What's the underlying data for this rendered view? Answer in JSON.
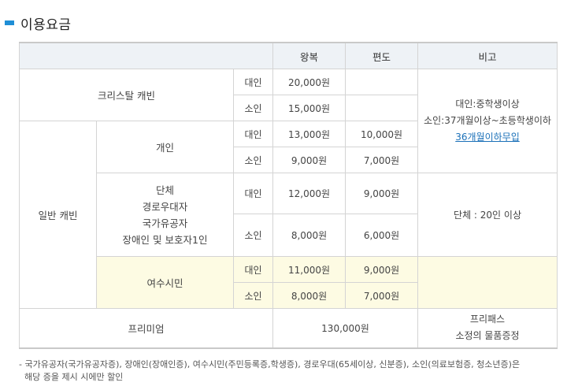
{
  "heading": "이용요금",
  "table": {
    "headers": {
      "blank": "",
      "round_trip": "왕복",
      "one_way": "편도",
      "remarks": "비고"
    },
    "crystal": {
      "label": "크리스탈  캐빈",
      "adult": {
        "type": "대인",
        "round_trip": "20,000원",
        "one_way": ""
      },
      "child": {
        "type": "소인",
        "round_trip": "15,000원",
        "one_way": ""
      }
    },
    "general": {
      "label": "일반  캐빈",
      "individual": {
        "label": "개인",
        "adult": {
          "type": "대인",
          "round_trip": "13,000원",
          "one_way": "10,000원"
        },
        "child": {
          "type": "소인",
          "round_trip": "9,000원",
          "one_way": "7,000원"
        }
      },
      "group": {
        "label_lines": [
          "단체",
          "경로우대자",
          "국가유공자",
          "장애인 및 보호자1인"
        ],
        "adult": {
          "type": "대인",
          "round_trip": "12,000원",
          "one_way": "9,000원"
        },
        "child": {
          "type": "소인",
          "round_trip": "8,000원",
          "one_way": "6,000원"
        },
        "remark": "단체 : 20인 이상"
      },
      "resident": {
        "label": "여수시민",
        "adult": {
          "type": "대인",
          "round_trip": "11,000원",
          "one_way": "9,000원"
        },
        "child": {
          "type": "소인",
          "round_trip": "8,000원",
          "one_way": "7,000원"
        }
      }
    },
    "age_remark": {
      "line1": "대인:중학생이상",
      "line2": "소인:37개월이상~초등학생이하",
      "link": "36개월이하무입"
    },
    "premium": {
      "label": "프리미엄",
      "price": "130,000원",
      "remark_line1": "프리패스",
      "remark_line2": "소정의 물품증정"
    }
  },
  "footnote": {
    "line1": "- 국가유공자(국가유공자증), 장애인(장애인증), 여수시민(주민등록증,학생증), 경로우대(65세이상, 신분증), 소인(의료보험증, 청소년증)은",
    "line2": "해당 증을 제시 시에만 할인"
  },
  "colors": {
    "accent": "#1f8ed6",
    "header_bg": "#eef2f6",
    "resident_bg": "#fdfbe3",
    "link": "#1a70b8"
  }
}
